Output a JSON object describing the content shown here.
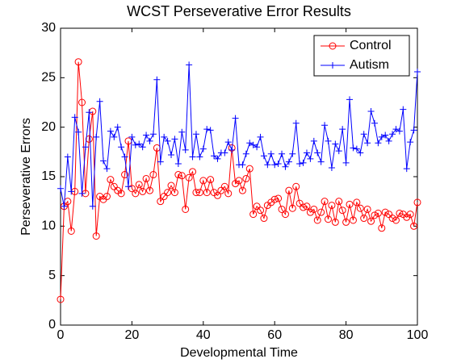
{
  "chart_data": {
    "type": "line",
    "title": "WCST Perseverative Error Results",
    "xlabel": "Developmental Time",
    "ylabel": "Perseverative Errors",
    "x": [
      0,
      1,
      2,
      3,
      4,
      5,
      6,
      7,
      8,
      9,
      10,
      11,
      12,
      13,
      14,
      15,
      16,
      17,
      18,
      19,
      20,
      21,
      22,
      23,
      24,
      25,
      26,
      27,
      28,
      29,
      30,
      31,
      32,
      33,
      34,
      35,
      36,
      37,
      38,
      39,
      40,
      41,
      42,
      43,
      44,
      45,
      46,
      47,
      48,
      49,
      50,
      51,
      52,
      53,
      54,
      55,
      56,
      57,
      58,
      59,
      60,
      61,
      62,
      63,
      64,
      65,
      66,
      67,
      68,
      69,
      70,
      71,
      72,
      73,
      74,
      75,
      76,
      77,
      78,
      79,
      80,
      81,
      82,
      83,
      84,
      85,
      86,
      87,
      88,
      89,
      90,
      91,
      92,
      93,
      94,
      95,
      96,
      97,
      98,
      99,
      100
    ],
    "series": [
      {
        "name": "Control",
        "color": "#ff0000",
        "marker": "circle",
        "values": [
          2.6,
          12,
          12.5,
          9.5,
          13.5,
          26.6,
          22.5,
          13.3,
          18.8,
          21.6,
          9,
          13,
          12.7,
          13,
          14.7,
          14,
          13.6,
          13.3,
          15.2,
          18.6,
          13.8,
          13.3,
          14.2,
          13.5,
          14.8,
          13.6,
          15.2,
          17.9,
          12.5,
          13,
          13.4,
          14.1,
          13.4,
          15.2,
          15.1,
          11.7,
          14.9,
          15.5,
          13.4,
          13.4,
          14.6,
          13.4,
          14.7,
          13.4,
          13.1,
          13.6,
          14,
          13.3,
          17.9,
          14.3,
          14.6,
          13.6,
          14.8,
          15.8,
          11.2,
          12,
          11.6,
          10.8,
          12.1,
          12.4,
          12.7,
          12.8,
          11.7,
          11.2,
          13.6,
          11.8,
          14,
          12.3,
          11.9,
          12,
          11.4,
          11.7,
          10.6,
          11.4,
          12.5,
          10.7,
          12.1,
          10.4,
          12.5,
          11.6,
          10.4,
          12.2,
          10.6,
          12.4,
          11.8,
          10.8,
          11.7,
          10.5,
          11.1,
          11.3,
          9.8,
          11.4,
          11.2,
          10.8,
          10.6,
          11.3,
          11.2,
          10.9,
          11.2,
          10,
          12.4
        ]
      },
      {
        "name": "Autism",
        "color": "#0000ff",
        "marker": "plus",
        "values": [
          13.8,
          12,
          17,
          13.5,
          21,
          19.5,
          13.3,
          18,
          21.5,
          12,
          19,
          22.6,
          16.6,
          15.8,
          19.6,
          19,
          20,
          18,
          17,
          14,
          19,
          18.2,
          18.3,
          18,
          19.2,
          18.6,
          19.3,
          24.8,
          16.5,
          19,
          18.6,
          17.2,
          18.8,
          16.3,
          19.5,
          17.7,
          26.3,
          17,
          19.3,
          17,
          17.8,
          19.8,
          19.7,
          17.1,
          16.8,
          17.4,
          17.4,
          18.5,
          17.7,
          20.9,
          16.2,
          16.2,
          17.3,
          18.4,
          18.2,
          18,
          19,
          17.1,
          16.2,
          17.3,
          16.2,
          16.3,
          17.3,
          16,
          16.5,
          17.3,
          20.4,
          16.3,
          16.4,
          17.4,
          16.8,
          18.6,
          17.4,
          16.5,
          20.2,
          18.6,
          15.9,
          18.3,
          17.6,
          19.8,
          16.4,
          22.8,
          17.9,
          17.8,
          17.4,
          19.3,
          18.4,
          21.6,
          20.4,
          18.4,
          19,
          19.2,
          18.6,
          19.3,
          19.8,
          19.6,
          21.8,
          15.8,
          18.5,
          19.7,
          25.6
        ]
      }
    ],
    "xlim": [
      0,
      100
    ],
    "xticks": [
      0,
      20,
      40,
      60,
      80,
      100
    ],
    "ylim": [
      0,
      30
    ],
    "yticks": [
      0,
      5,
      10,
      15,
      20,
      25,
      30
    ],
    "legend": "northeast"
  }
}
